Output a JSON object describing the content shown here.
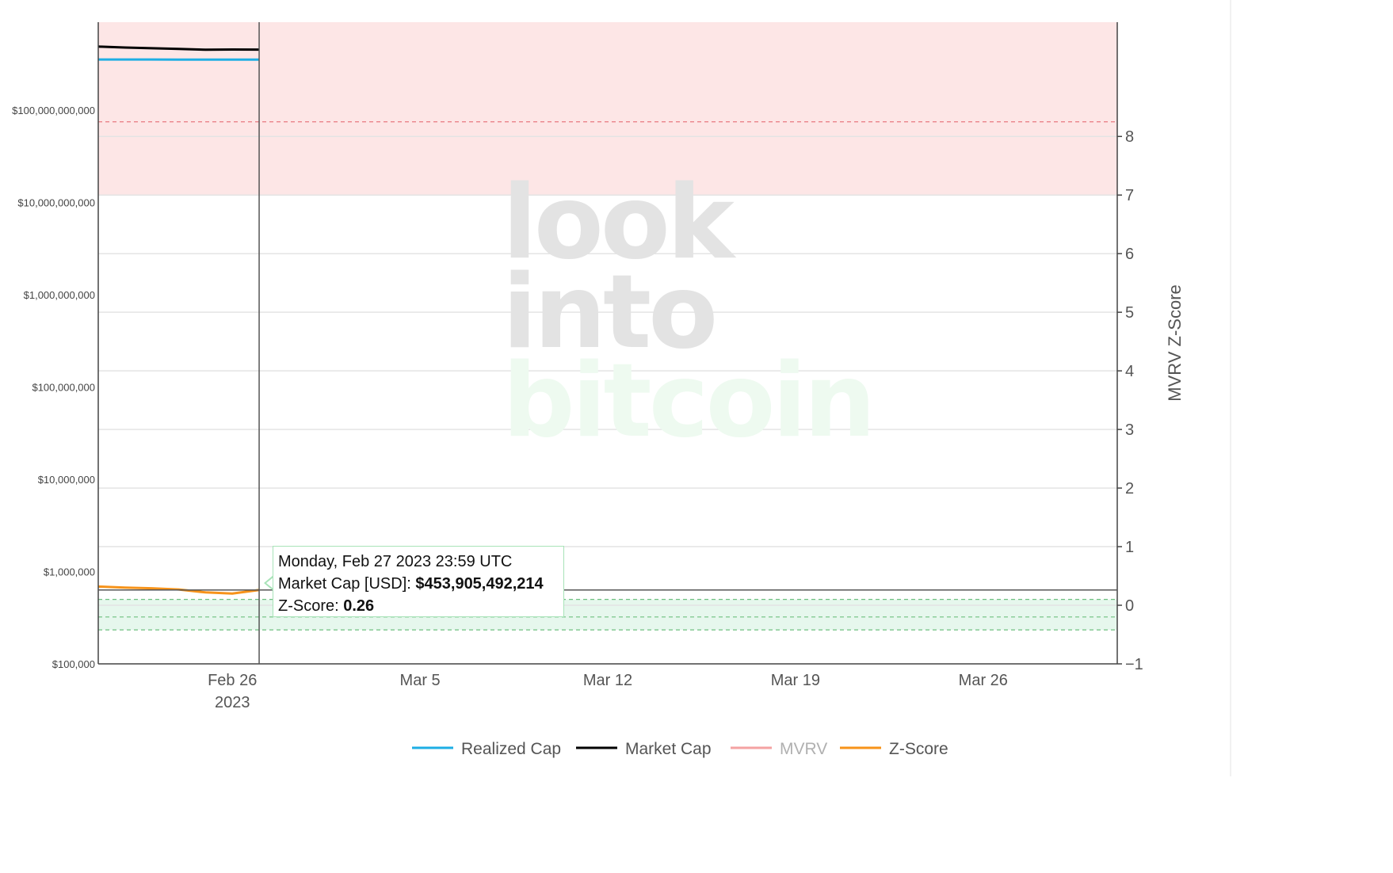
{
  "chart_data": {
    "type": "line",
    "watermark": [
      "look",
      "into",
      "bitcoin"
    ],
    "x_ticks": [
      {
        "date": "2023-02-26",
        "label": "Feb 26",
        "sublabel": "2023"
      },
      {
        "date": "2023-03-05",
        "label": "Mar 5"
      },
      {
        "date": "2023-03-12",
        "label": "Mar 12"
      },
      {
        "date": "2023-03-19",
        "label": "Mar 19"
      },
      {
        "date": "2023-03-26",
        "label": "Mar 26"
      }
    ],
    "xlim": [
      "2023-02-21",
      "2023-03-31"
    ],
    "y_left": {
      "scale": "log",
      "ylim": [
        100000,
        900000000000
      ],
      "ticks": [
        {
          "value": 100000000000,
          "label": "$100,000,000,000"
        },
        {
          "value": 10000000000,
          "label": "$10,000,000,000"
        },
        {
          "value": 1000000000,
          "label": "$1,000,000,000"
        },
        {
          "value": 100000000,
          "label": "$100,000,000"
        },
        {
          "value": 10000000,
          "label": "$10,000,000"
        },
        {
          "value": 1000000,
          "label": "$1,000,000"
        },
        {
          "value": 100000,
          "label": "$100,000"
        }
      ]
    },
    "y_right": {
      "title": "MVRV Z-Score",
      "ylim": [
        -1,
        9.95
      ],
      "ticks": [
        {
          "value": 8,
          "label": "8"
        },
        {
          "value": 7,
          "label": "7"
        },
        {
          "value": 6,
          "label": "6"
        },
        {
          "value": 5,
          "label": "5"
        },
        {
          "value": 4,
          "label": "4"
        },
        {
          "value": 3,
          "label": "3"
        },
        {
          "value": 2,
          "label": "2"
        },
        {
          "value": 1,
          "label": "1"
        },
        {
          "value": 0,
          "label": "0"
        },
        {
          "value": -1,
          "label": "−1"
        }
      ]
    },
    "bands": [
      {
        "zone": "overvalued",
        "from": 7,
        "to": 9.95,
        "fill": "#fde6e6",
        "line_color": "#e8787f",
        "lines": [
          7,
          8.25
        ]
      },
      {
        "zone": "undervalued",
        "from": -0.42,
        "to": 0.1,
        "fill": "#e6f7ed",
        "line_color": "#6fbf80",
        "lines": [
          0.1,
          -0.2,
          -0.42
        ]
      }
    ],
    "series": [
      {
        "name": "Market Cap",
        "axis": "left",
        "color": "#000000",
        "x": [
          "2023-02-21",
          "2023-02-22",
          "2023-02-23",
          "2023-02-24",
          "2023-02-25",
          "2023-02-26",
          "2023-02-27"
        ],
        "y": [
          490000000000,
          478000000000,
          470000000000,
          462000000000,
          452000000000,
          455000000000,
          453905492214
        ]
      },
      {
        "name": "Realized Cap",
        "axis": "left",
        "color": "#1eaee4",
        "x": [
          "2023-02-21",
          "2023-02-22",
          "2023-02-23",
          "2023-02-24",
          "2023-02-25",
          "2023-02-26",
          "2023-02-27"
        ],
        "y": [
          355000000000,
          355000000000,
          355000000000,
          354000000000,
          354000000000,
          354000000000,
          354000000000
        ]
      },
      {
        "name": "MVRV",
        "axis": "left",
        "color": "#f4a2a2",
        "visible": false,
        "x": [],
        "y": []
      },
      {
        "name": "Z-Score",
        "axis": "right",
        "color": "#f7931a",
        "x": [
          "2023-02-21",
          "2023-02-22",
          "2023-02-23",
          "2023-02-24",
          "2023-02-25",
          "2023-02-26",
          "2023-02-27"
        ],
        "y": [
          0.32,
          0.3,
          0.29,
          0.27,
          0.22,
          0.2,
          0.26
        ]
      }
    ],
    "hover": {
      "date": "2023-02-27",
      "market_cap_usd": 453905492214,
      "z_score": 0.26
    },
    "legend": {
      "placement": "bottom-center",
      "items": [
        {
          "label": "Realized Cap",
          "color": "#1eaee4",
          "muted": false
        },
        {
          "label": "Market Cap",
          "color": "#000000",
          "muted": false
        },
        {
          "label": "MVRV",
          "color": "#f4a2a2",
          "muted": true
        },
        {
          "label": "Z-Score",
          "color": "#f7931a",
          "muted": false
        }
      ]
    }
  },
  "tooltip": {
    "title": "Monday, Feb 27 2023 23:59 UTC",
    "line1_label": "Market Cap [USD]: ",
    "line1_value": "$453,905,492,214",
    "line2_label": "Z-Score: ",
    "line2_value": "0.26"
  }
}
